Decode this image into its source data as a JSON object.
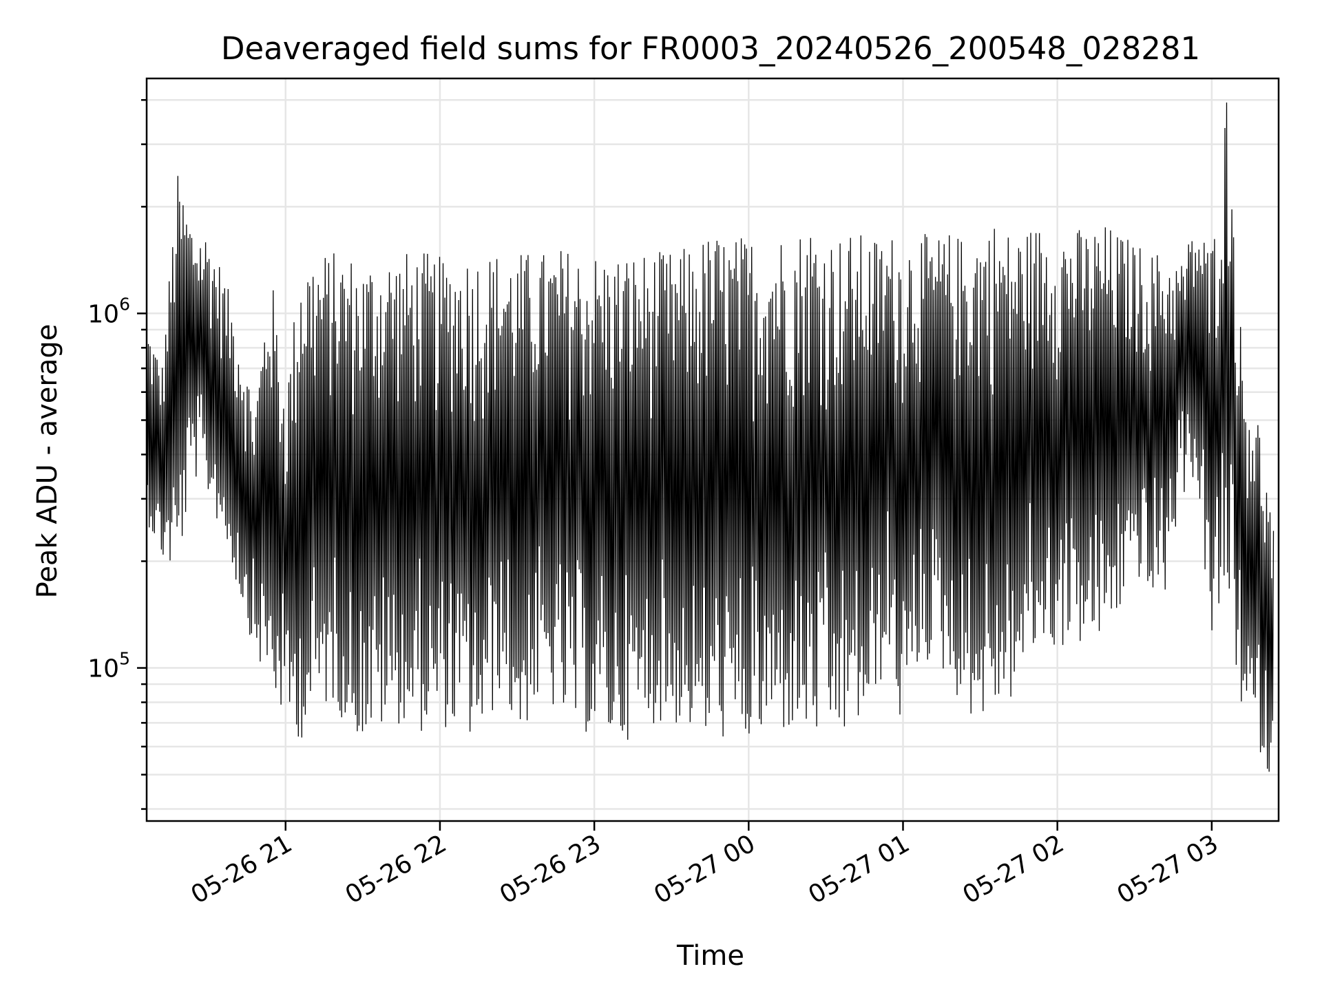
{
  "chart_data": {
    "type": "line",
    "title": "Deaveraged field sums for FR0003_20240526_200548_028281",
    "xlabel": "Time",
    "ylabel": "Peak ADU - average",
    "x_scale": "time",
    "y_scale": "log",
    "xlim": [
      "2024-05-26 20:06",
      "2024-05-27 03:26"
    ],
    "ylim": [
      37000,
      4600000
    ],
    "x_ticks": [
      {
        "value": "2024-05-26 21:00",
        "label": "05-26 21"
      },
      {
        "value": "2024-05-26 22:00",
        "label": "05-26 22"
      },
      {
        "value": "2024-05-26 23:00",
        "label": "05-26 23"
      },
      {
        "value": "2024-05-27 00:00",
        "label": "05-27 00"
      },
      {
        "value": "2024-05-27 01:00",
        "label": "05-27 01"
      },
      {
        "value": "2024-05-27 02:00",
        "label": "05-27 02"
      },
      {
        "value": "2024-05-27 03:00",
        "label": "05-27 03"
      }
    ],
    "y_ticks": [
      {
        "value": 100000,
        "base": "10",
        "exponent": "5"
      },
      {
        "value": 1000000,
        "base": "10",
        "exponent": "6"
      }
    ],
    "grid": true,
    "line_color": "#000000",
    "series": [
      {
        "x": [
          "2024-05-26 20:06",
          "2024-05-26 20:12",
          "2024-05-26 20:18",
          "2024-05-26 20:24",
          "2024-05-26 20:30",
          "2024-05-26 20:36",
          "2024-05-26 20:42",
          "2024-05-26 20:48",
          "2024-05-26 20:54",
          "2024-05-26 21:00",
          "2024-05-26 21:06",
          "2024-05-26 21:12",
          "2024-05-26 21:18",
          "2024-05-26 21:24",
          "2024-05-26 21:30",
          "2024-05-26 21:36",
          "2024-05-26 21:42",
          "2024-05-26 21:48",
          "2024-05-26 21:54",
          "2024-05-26 22:00",
          "2024-05-26 22:06",
          "2024-05-26 22:12",
          "2024-05-26 22:18",
          "2024-05-26 22:24",
          "2024-05-26 22:30",
          "2024-05-26 22:36",
          "2024-05-26 22:42",
          "2024-05-26 22:48",
          "2024-05-26 22:54",
          "2024-05-26 23:00",
          "2024-05-26 23:06",
          "2024-05-26 23:12",
          "2024-05-26 23:18",
          "2024-05-26 23:24",
          "2024-05-26 23:30",
          "2024-05-26 23:36",
          "2024-05-26 23:42",
          "2024-05-26 23:48",
          "2024-05-26 23:54",
          "2024-05-27 00:00",
          "2024-05-27 00:06",
          "2024-05-27 00:12",
          "2024-05-27 00:18",
          "2024-05-27 00:24",
          "2024-05-27 00:30",
          "2024-05-27 00:36",
          "2024-05-27 00:42",
          "2024-05-27 00:48",
          "2024-05-27 00:54",
          "2024-05-27 01:00",
          "2024-05-27 01:06",
          "2024-05-27 01:12",
          "2024-05-27 01:18",
          "2024-05-27 01:24",
          "2024-05-27 01:30",
          "2024-05-27 01:36",
          "2024-05-27 01:42",
          "2024-05-27 01:48",
          "2024-05-27 01:54",
          "2024-05-27 02:00",
          "2024-05-27 02:06",
          "2024-05-27 02:12",
          "2024-05-27 02:18",
          "2024-05-27 02:24",
          "2024-05-27 02:30",
          "2024-05-27 02:36",
          "2024-05-27 02:42",
          "2024-05-27 02:48",
          "2024-05-27 02:54",
          "2024-05-27 03:00",
          "2024-05-27 03:06",
          "2024-05-27 03:12",
          "2024-05-27 03:18",
          "2024-05-27 03:24"
        ],
        "max": [
          950000,
          720000,
          2500000,
          1800000,
          1700000,
          1300000,
          900000,
          550000,
          1400000,
          600000,
          1500000,
          1500000,
          1500000,
          1500000,
          1400000,
          1500000,
          1500000,
          1500000,
          1500000,
          1450000,
          1500000,
          1500000,
          1500000,
          1500000,
          1500000,
          1500000,
          1500000,
          1550000,
          1500000,
          1500000,
          1480000,
          1500000,
          1500000,
          1500000,
          1500000,
          1550000,
          1650000,
          1700000,
          1650000,
          1680000,
          1650000,
          1700000,
          1700000,
          1850000,
          1700000,
          1680000,
          1700000,
          1650000,
          1680000,
          1700000,
          1700000,
          1650000,
          1700000,
          1650000,
          1800000,
          1850000,
          1700000,
          1750000,
          1800000,
          1800000,
          1750000,
          1750000,
          1800000,
          1700000,
          1600000,
          1500000,
          1500000,
          1400000,
          1850000,
          1550000,
          4400000,
          750000,
          520000,
          250000
        ],
        "min": [
          260000,
          200000,
          180000,
          350000,
          300000,
          230000,
          160000,
          110000,
          85000,
          70000,
          62000,
          72000,
          80000,
          68000,
          62000,
          65000,
          70000,
          68000,
          65000,
          68000,
          66000,
          62000,
          63000,
          90000,
          60000,
          75000,
          78000,
          70000,
          65000,
          65000,
          62000,
          62000,
          66000,
          70000,
          68000,
          68000,
          60000,
          65000,
          58000,
          60000,
          62000,
          65000,
          65000,
          63000,
          62000,
          62000,
          68000,
          70000,
          110000,
          62000,
          100000,
          105000,
          90000,
          75000,
          70000,
          75000,
          80000,
          100000,
          115000,
          110000,
          120000,
          110000,
          120000,
          140000,
          190000,
          150000,
          160000,
          300000,
          350000,
          110000,
          160000,
          70000,
          60000,
          45000
        ]
      }
    ]
  }
}
